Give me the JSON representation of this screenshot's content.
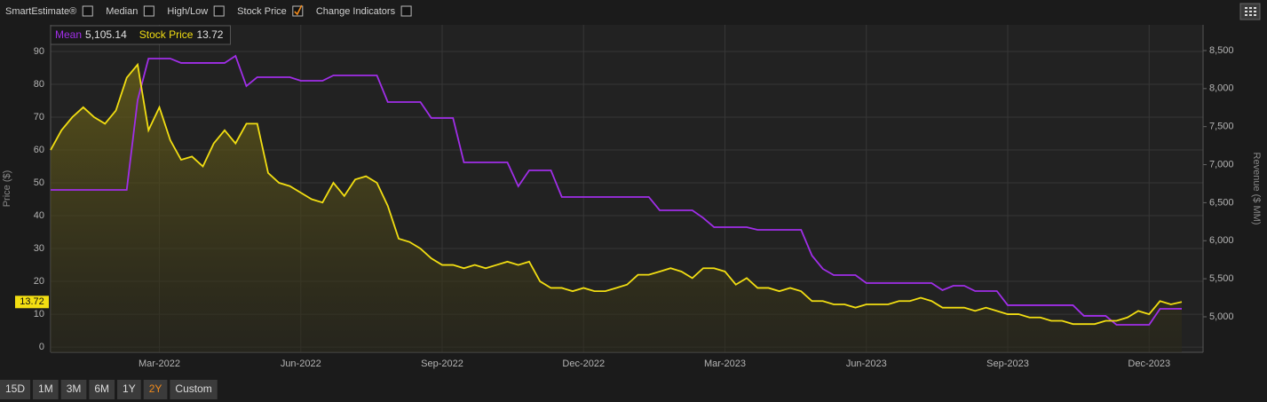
{
  "toolbar": {
    "options": [
      {
        "label": "SmartEstimate®",
        "checked": false
      },
      {
        "label": "Median",
        "checked": false
      },
      {
        "label": "High/Low",
        "checked": false
      },
      {
        "label": "Stock Price",
        "checked": true
      },
      {
        "label": "Change Indicators",
        "checked": false
      }
    ]
  },
  "range_buttons": {
    "options": [
      "15D",
      "1M",
      "3M",
      "6M",
      "1Y",
      "2Y",
      "Custom"
    ],
    "selected_index": 5
  },
  "chart_data": {
    "type": "line",
    "ylabel": "Price ($)",
    "y2label": "Revenue ($ MM)",
    "categories": [
      null,
      null,
      null,
      null,
      null,
      null,
      null,
      null,
      null,
      null,
      "Mar-2022",
      null,
      null,
      null,
      null,
      null,
      null,
      null,
      null,
      null,
      null,
      null,
      null,
      "Jun-2022",
      null,
      null,
      null,
      null,
      null,
      null,
      null,
      null,
      null,
      null,
      null,
      null,
      "Sep-2022",
      null,
      null,
      null,
      null,
      null,
      null,
      null,
      null,
      null,
      null,
      null,
      null,
      "Dec-2022",
      null,
      null,
      null,
      null,
      null,
      null,
      null,
      null,
      null,
      null,
      null,
      null,
      "Mar-2023",
      null,
      null,
      null,
      null,
      null,
      null,
      null,
      null,
      null,
      null,
      null,
      null,
      "Jun-2023",
      null,
      null,
      null,
      null,
      null,
      null,
      null,
      null,
      null,
      null,
      null,
      null,
      "Sep-2023",
      null,
      null,
      null,
      null,
      null,
      null,
      null,
      null,
      null,
      null,
      null,
      null,
      "Dec-2023",
      null,
      null,
      null
    ],
    "series": [
      {
        "name": "Mean",
        "color": "#a02ee8",
        "axis": "y2",
        "readout": "5,105.14",
        "values": [
          6668,
          6668,
          6668,
          6668,
          6668,
          6668,
          6668,
          6668,
          7847,
          8395,
          8395,
          8395,
          8337,
          8337,
          8337,
          8337,
          8337,
          8430,
          8033,
          8150,
          8150,
          8150,
          8150,
          8103,
          8103,
          8103,
          8173,
          8173,
          8173,
          8173,
          8173,
          7823,
          7823,
          7823,
          7823,
          7613,
          7613,
          7613,
          7030,
          7030,
          7030,
          7030,
          7030,
          6715,
          6925,
          6925,
          6925,
          6575,
          6575,
          6575,
          6575,
          6575,
          6575,
          6575,
          6575,
          6575,
          6400,
          6400,
          6400,
          6400,
          6300,
          6178,
          6178,
          6178,
          6178,
          6143,
          6143,
          6143,
          6143,
          6143,
          5805,
          5630,
          5548,
          5548,
          5548,
          5443,
          5443,
          5443,
          5443,
          5443,
          5443,
          5443,
          5350,
          5408,
          5408,
          5338,
          5338,
          5338,
          5152,
          5152,
          5152,
          5152,
          5152,
          5152,
          5152,
          5012,
          5012,
          5012,
          4895,
          4895,
          4895,
          4895,
          5105,
          5105,
          5105.14
        ]
      },
      {
        "name": "Stock Price",
        "color": "#f2de12",
        "axis": "y",
        "values": [
          60,
          66,
          70,
          73,
          70,
          68,
          72,
          82,
          86,
          66,
          73,
          63,
          57,
          58,
          55,
          62,
          66,
          62,
          68,
          68,
          53,
          50,
          49,
          47,
          45,
          44,
          50,
          46,
          51,
          52,
          50,
          43,
          33,
          32,
          30,
          27,
          25,
          25,
          24,
          25,
          24,
          25,
          26,
          25,
          26,
          20,
          18,
          18,
          17,
          18,
          17,
          17,
          18,
          19,
          22,
          22,
          23,
          24,
          23,
          21,
          24,
          24,
          23,
          19,
          21,
          18,
          18,
          17,
          18,
          17,
          14,
          14,
          13,
          13,
          12,
          13,
          13,
          13,
          14,
          14,
          15,
          14,
          12,
          12,
          12,
          11,
          12,
          11,
          10,
          10,
          9,
          9,
          8,
          8,
          7,
          7,
          7,
          8,
          8,
          9,
          11,
          10,
          14,
          13,
          13.72
        ]
      }
    ],
    "ylim": [
      -1.6,
      98.1
    ],
    "yticks": [
      0,
      10,
      20,
      30,
      40,
      50,
      60,
      70,
      80,
      90
    ],
    "y2lim": [
      4533,
      8838
    ],
    "y2ticks": [
      {
        "value": 5000,
        "label": "5,000"
      },
      {
        "value": 5500,
        "label": "5,500"
      },
      {
        "value": 6000,
        "label": "6,000"
      },
      {
        "value": 6500,
        "label": "6,500"
      },
      {
        "value": 7000,
        "label": "7,000"
      },
      {
        "value": 7500,
        "label": "7,500"
      },
      {
        "value": 8000,
        "label": "8,000"
      },
      {
        "value": 8500,
        "label": "8,500"
      }
    ],
    "grid": true
  }
}
